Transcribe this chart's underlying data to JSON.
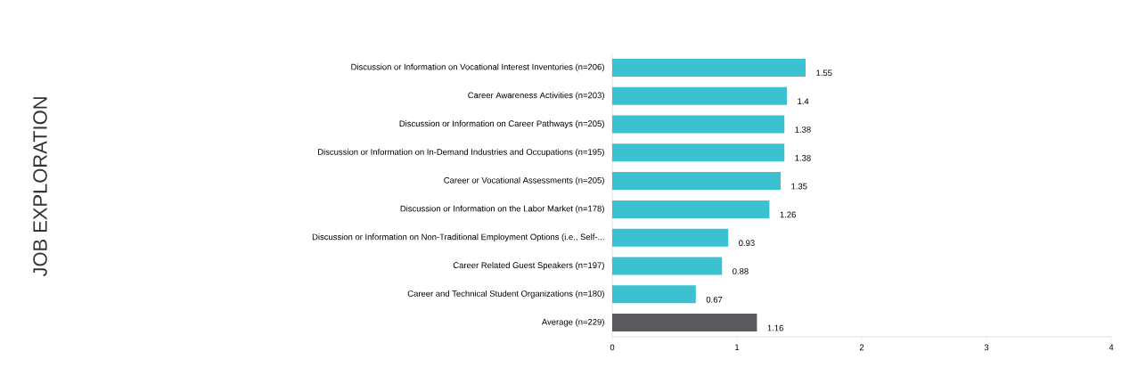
{
  "chart_data": {
    "type": "bar",
    "orientation": "horizontal",
    "annotations": [
      "JOB EXPLORATION"
    ],
    "categories": [
      "Discussion or Information on Vocational Interest Inventories (n=206)",
      "Career Awareness Activities (n=203)",
      "Discussion or Information on Career Pathways (n=205)",
      "Discussion or Information on In-Demand Industries and Occupations (n=195)",
      "Career or Vocational Assessments (n=205)",
      "Discussion or Information on the Labor Market (n=178)",
      "Discussion or Information on Non-Traditional Employment Options (i.e., Self-...",
      "Career Related Guest Speakers (n=197)",
      "Career and Technical Student Organizations (n=180)",
      "Average (n=229)"
    ],
    "values": [
      1.55,
      1.4,
      1.38,
      1.38,
      1.35,
      1.26,
      0.93,
      0.88,
      0.67,
      1.16
    ],
    "colors": [
      "#3bc1cf",
      "#3bc1cf",
      "#3bc1cf",
      "#3bc1cf",
      "#3bc1cf",
      "#3bc1cf",
      "#3bc1cf",
      "#3bc1cf",
      "#3bc1cf",
      "#5a5a5c"
    ],
    "xlim": [
      0,
      4
    ],
    "xticks": [
      0,
      1,
      2,
      3,
      4
    ],
    "data_labels": true,
    "grid": false
  }
}
